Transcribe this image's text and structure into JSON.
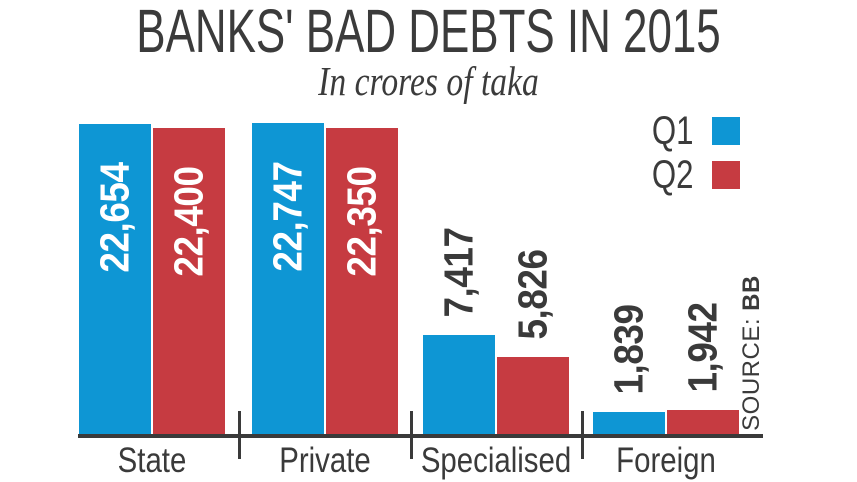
{
  "title": "BANKS' BAD DEBTS IN 2015",
  "subtitle": "In crores of taka",
  "source": {
    "label": "SOURCE:",
    "value": "BB"
  },
  "legend": {
    "items": [
      {
        "label": "Q1",
        "color": "#0e96d4"
      },
      {
        "label": "Q2",
        "color": "#c63b41"
      }
    ]
  },
  "chart_data": {
    "type": "bar",
    "title": "BANKS' BAD DEBTS IN 2015",
    "subtitle": "In crores of taka",
    "unit": "crores of taka",
    "categories": [
      "State",
      "Private",
      "Specialised",
      "Foreign"
    ],
    "series": [
      {
        "name": "Q1",
        "color": "#0e96d4",
        "values": [
          22654,
          22747,
          7417,
          1839
        ],
        "labels": [
          "22,654",
          "22,747",
          "7,417",
          "1,839"
        ]
      },
      {
        "name": "Q2",
        "color": "#c63b41",
        "values": [
          22400,
          22350,
          5826,
          1942
        ],
        "labels": [
          "22,400",
          "22,350",
          "5,826",
          "1,942"
        ]
      }
    ],
    "ylim": [
      0,
      22747
    ],
    "grid": false,
    "axis_labels_shown": false,
    "legend_position": "top-right",
    "value_label_style": "rotated-90-ccw",
    "source": "BB"
  },
  "colors": {
    "text": "#3a3a3a",
    "axis": "#3a3a3a",
    "bar_label_inside": "#ffffff"
  }
}
